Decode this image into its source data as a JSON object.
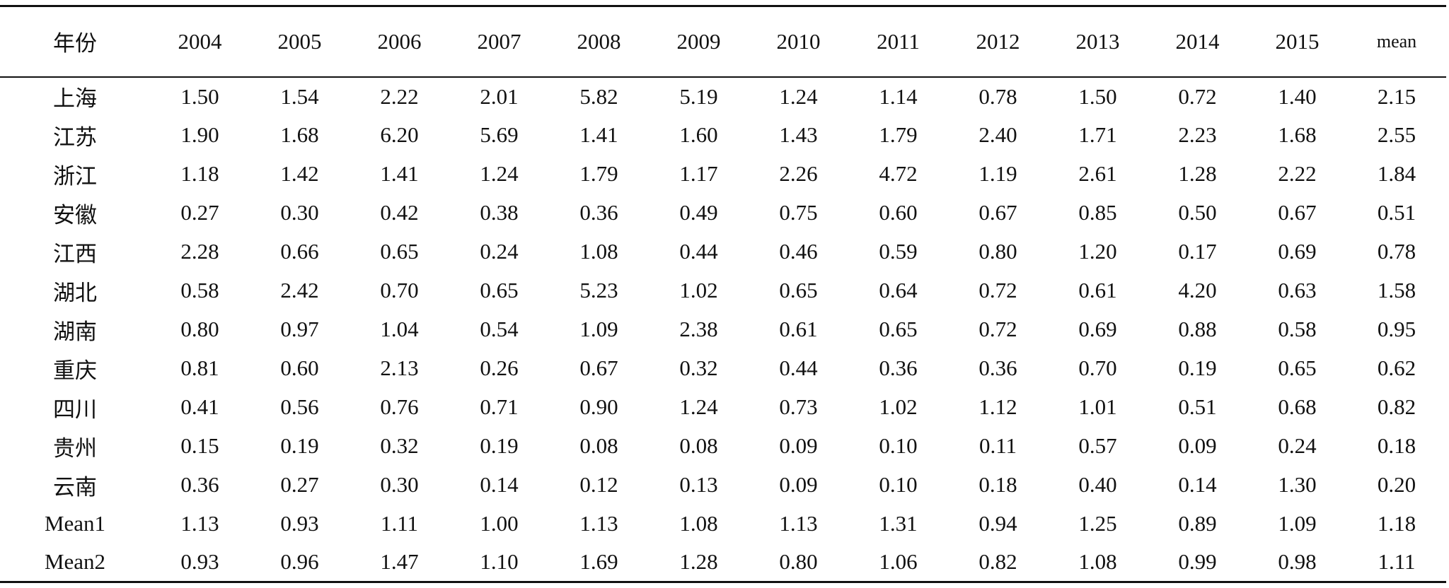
{
  "table": {
    "header": [
      "年份",
      "2004",
      "2005",
      "2006",
      "2007",
      "2008",
      "2009",
      "2010",
      "2011",
      "2012",
      "2013",
      "2014",
      "2015",
      "mean"
    ],
    "rows": [
      [
        "上海",
        "1.50",
        "1.54",
        "2.22",
        "2.01",
        "5.82",
        "5.19",
        "1.24",
        "1.14",
        "0.78",
        "1.50",
        "0.72",
        "1.40",
        "2.15"
      ],
      [
        "江苏",
        "1.90",
        "1.68",
        "6.20",
        "5.69",
        "1.41",
        "1.60",
        "1.43",
        "1.79",
        "2.40",
        "1.71",
        "2.23",
        "1.68",
        "2.55"
      ],
      [
        "浙江",
        "1.18",
        "1.42",
        "1.41",
        "1.24",
        "1.79",
        "1.17",
        "2.26",
        "4.72",
        "1.19",
        "2.61",
        "1.28",
        "2.22",
        "1.84"
      ],
      [
        "安徽",
        "0.27",
        "0.30",
        "0.42",
        "0.38",
        "0.36",
        "0.49",
        "0.75",
        "0.60",
        "0.67",
        "0.85",
        "0.50",
        "0.67",
        "0.51"
      ],
      [
        "江西",
        "2.28",
        "0.66",
        "0.65",
        "0.24",
        "1.08",
        "0.44",
        "0.46",
        "0.59",
        "0.80",
        "1.20",
        "0.17",
        "0.69",
        "0.78"
      ],
      [
        "湖北",
        "0.58",
        "2.42",
        "0.70",
        "0.65",
        "5.23",
        "1.02",
        "0.65",
        "0.64",
        "0.72",
        "0.61",
        "4.20",
        "0.63",
        "1.58"
      ],
      [
        "湖南",
        "0.80",
        "0.97",
        "1.04",
        "0.54",
        "1.09",
        "2.38",
        "0.61",
        "0.65",
        "0.72",
        "0.69",
        "0.88",
        "0.58",
        "0.95"
      ],
      [
        "重庆",
        "0.81",
        "0.60",
        "2.13",
        "0.26",
        "0.67",
        "0.32",
        "0.44",
        "0.36",
        "0.36",
        "0.70",
        "0.19",
        "0.65",
        "0.62"
      ],
      [
        "四川",
        "0.41",
        "0.56",
        "0.76",
        "0.71",
        "0.90",
        "1.24",
        "0.73",
        "1.02",
        "1.12",
        "1.01",
        "0.51",
        "0.68",
        "0.82"
      ],
      [
        "贵州",
        "0.15",
        "0.19",
        "0.32",
        "0.19",
        "0.08",
        "0.08",
        "0.09",
        "0.10",
        "0.11",
        "0.57",
        "0.09",
        "0.24",
        "0.18"
      ],
      [
        "云南",
        "0.36",
        "0.27",
        "0.30",
        "0.14",
        "0.12",
        "0.13",
        "0.09",
        "0.10",
        "0.18",
        "0.40",
        "0.14",
        "1.30",
        "0.20"
      ],
      [
        "Mean1",
        "1.13",
        "0.93",
        "1.11",
        "1.00",
        "1.13",
        "1.08",
        "1.13",
        "1.31",
        "0.94",
        "1.25",
        "0.89",
        "1.09",
        "1.18"
      ],
      [
        "Mean2",
        "0.93",
        "0.96",
        "1.47",
        "1.10",
        "1.69",
        "1.28",
        "0.80",
        "1.06",
        "0.82",
        "1.08",
        "0.99",
        "0.98",
        "1.11"
      ]
    ]
  }
}
